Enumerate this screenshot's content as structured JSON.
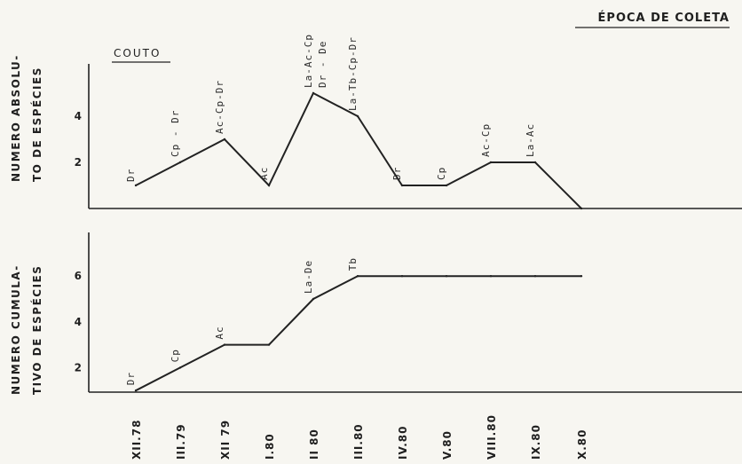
{
  "chart_data": [
    {
      "type": "line",
      "title": "ÉPOCA DE COLETA",
      "site": "COUTO",
      "ylabel": [
        "NUMERO ABSOLU-",
        "TO DE ESPÉCIES"
      ],
      "yticks": [
        2,
        4
      ],
      "ylim": [
        0,
        6
      ],
      "categories": [
        "XII.78",
        "III.79",
        "XII 79",
        "I.80",
        "II 80",
        "III.80",
        "IV.80",
        "V.80",
        "VIII.80",
        "IX.80",
        "X.80"
      ],
      "values": [
        1,
        2,
        3,
        1,
        5,
        4,
        1,
        1,
        2,
        2,
        0
      ],
      "point_labels": [
        "Dr",
        "Cp - Dr",
        "Ac-Cp-Dr",
        "Ac",
        [
          "La-Ac-Cp",
          "Dr - De"
        ],
        "La-Tb-Cp-Dr",
        "Dr",
        "Cp",
        "Ac-Cp",
        "La-Ac",
        ""
      ]
    },
    {
      "type": "line",
      "ylabel": [
        "NUMERO CUMULA-",
        "TIVO DE ESPÉCIES"
      ],
      "yticks": [
        2,
        4,
        6
      ],
      "ylim": [
        0,
        8
      ],
      "categories": [
        "XII.78",
        "III.79",
        "XII 79",
        "I.80",
        "II 80",
        "III.80",
        "IV.80",
        "V.80",
        "VIII.80",
        "IX.80",
        "X.80"
      ],
      "values": [
        1,
        2,
        3,
        3,
        5,
        6,
        6,
        6,
        6,
        6,
        6
      ],
      "point_labels": [
        "Dr",
        "Cp",
        "Ac",
        "",
        "La-De",
        "Tb",
        "",
        "",
        "",
        "",
        ""
      ]
    }
  ],
  "x_tick_labels": [
    "XII.78",
    "III.79",
    "XII 79",
    "I.80",
    "II 80",
    "III.80",
    "IV.80",
    "V.80",
    "VIII.80",
    "IX.80",
    "X.80"
  ]
}
